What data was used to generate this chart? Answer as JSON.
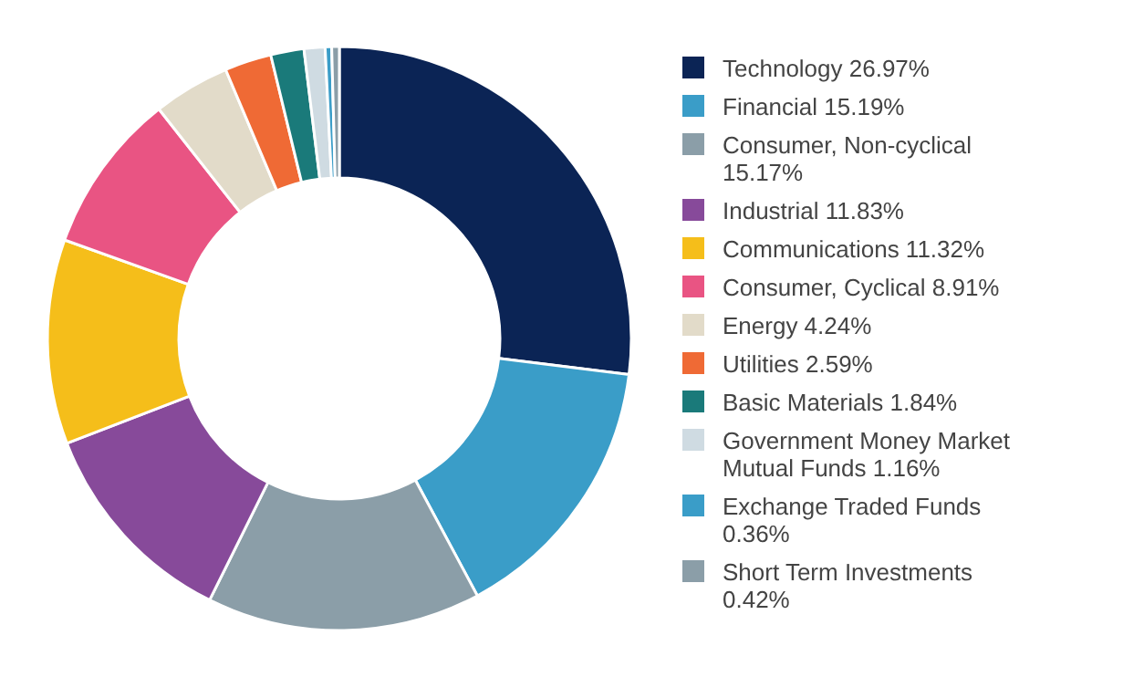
{
  "chart_data": {
    "type": "donut",
    "categories": [
      "Technology 26.97%",
      "Financial 15.19%",
      "Consumer, Non-cyclical 15.17%",
      "Industrial 11.83%",
      "Communications 11.32%",
      "Consumer, Cyclical 8.91%",
      "Energy 4.24%",
      "Utilities 2.59%",
      "Basic Materials 1.84%",
      "Government Money Market Mutual Funds 1.16%",
      "Exchange Traded Funds 0.36%",
      "Short Term Investments 0.42%"
    ],
    "values": [
      26.97,
      15.19,
      15.17,
      11.83,
      11.32,
      8.91,
      4.24,
      2.59,
      1.84,
      1.16,
      0.36,
      0.42
    ],
    "colors": [
      "#0b2455",
      "#3a9dc8",
      "#8b9ea8",
      "#874a9a",
      "#f5be1a",
      "#e95483",
      "#e2dbc9",
      "#ef6a35",
      "#1a7a7a",
      "#cfdbe2",
      "#3a9dc8",
      "#8b9ea8"
    ],
    "legend": "right"
  }
}
